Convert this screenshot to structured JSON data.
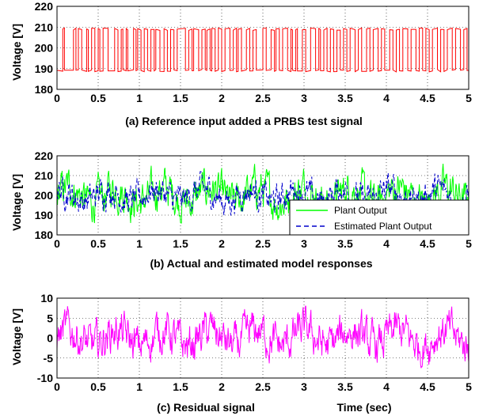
{
  "chart_data": [
    {
      "type": "line",
      "caption": "(a) Reference input added a PRBS test signal",
      "xlabel": "",
      "ylabel": "Voltage [V]",
      "xlim": [
        0,
        5
      ],
      "ylim": [
        180,
        220
      ],
      "xticks": [
        "0",
        "0.5",
        "1",
        "1.5",
        "2",
        "2.5",
        "3",
        "3.5",
        "4",
        "4.5",
        "5"
      ],
      "yticks": [
        "180",
        "190",
        "200",
        "210",
        "220"
      ],
      "grid": true,
      "series": [
        {
          "color": "#ff0000",
          "levels": [
            189,
            209
          ],
          "switch_times": [
            0.07,
            0.09,
            0.2,
            0.23,
            0.26,
            0.3,
            0.36,
            0.38,
            0.42,
            0.46,
            0.5,
            0.52,
            0.56,
            0.62,
            0.7,
            0.74,
            0.78,
            0.8,
            0.84,
            0.86,
            0.93,
            0.96,
            0.98,
            1.02,
            1.06,
            1.1,
            1.14,
            1.18,
            1.2,
            1.25,
            1.3,
            1.34,
            1.38,
            1.42,
            1.46,
            1.56,
            1.6,
            1.64,
            1.66,
            1.72,
            1.76,
            1.8,
            1.82,
            1.86,
            1.88,
            1.92,
            1.96,
            2.0,
            2.04,
            2.1,
            2.14,
            2.18,
            2.2,
            2.24,
            2.3,
            2.34,
            2.38,
            2.42,
            2.5,
            2.54,
            2.6,
            2.64,
            2.66,
            2.7,
            2.74,
            2.8,
            2.84,
            2.86,
            2.9,
            2.92,
            2.98,
            3.02,
            3.08,
            3.14,
            3.18,
            3.2,
            3.24,
            3.28,
            3.32,
            3.36,
            3.4,
            3.44,
            3.48,
            3.52,
            3.56,
            3.62,
            3.66,
            3.7,
            3.76,
            3.8,
            3.84,
            3.9,
            3.94,
            3.98,
            4.04,
            4.08,
            4.12,
            4.16,
            4.2,
            4.26,
            4.3,
            4.36,
            4.4,
            4.44,
            4.48,
            4.52,
            4.56,
            4.62,
            4.66,
            4.7,
            4.74,
            4.8,
            4.84,
            4.9,
            4.94,
            4.98
          ]
        }
      ]
    },
    {
      "type": "line",
      "caption": "(b) Actual and estimated model responses",
      "xlabel": "",
      "ylabel": "Voltage [V]",
      "xlim": [
        0,
        5
      ],
      "ylim": [
        180,
        220
      ],
      "xticks": [
        "0",
        "0.5",
        "1",
        "1.5",
        "2",
        "2.5",
        "3",
        "3.5",
        "4",
        "4.5",
        "5"
      ],
      "yticks": [
        "180",
        "190",
        "200",
        "210",
        "220"
      ],
      "grid": true,
      "legend": "bottom-right",
      "series": [
        {
          "name": "Plant Output",
          "color": "#00ff00",
          "style": "solid",
          "mean": 200,
          "range": [
            186,
            216
          ]
        },
        {
          "name": "Estimated Plant Output",
          "color": "#0000cc",
          "style": "dashed",
          "mean": 200,
          "range": [
            189,
            212
          ]
        }
      ]
    },
    {
      "type": "line",
      "caption": "(c) Residual signal",
      "xlabel": "Time (sec)",
      "ylabel": "Voltage [V]",
      "xlim": [
        0,
        5
      ],
      "ylim": [
        -10,
        10
      ],
      "xticks": [
        "0",
        "0.5",
        "1",
        "1.5",
        "2",
        "2.5",
        "3",
        "3.5",
        "4",
        "4.5",
        "5"
      ],
      "yticks": [
        "-10",
        "-5",
        "0",
        "5",
        "10"
      ],
      "grid": true,
      "series": [
        {
          "color": "#ff00ff",
          "mean": 0,
          "range": [
            -7.5,
            8
          ]
        }
      ]
    }
  ]
}
